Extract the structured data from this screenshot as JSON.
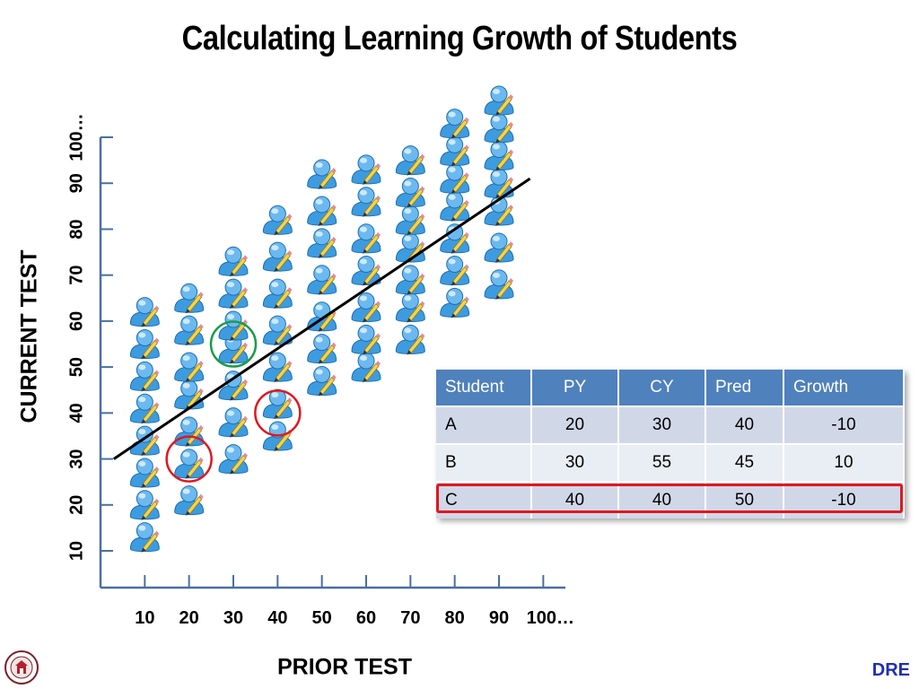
{
  "title": "Calculating Learning Growth of Students",
  "logo_text": "THE SCHOOL DISTRICT",
  "brand": "DRE",
  "colors": {
    "axis": "#4a6fa5",
    "trend": "#000000",
    "highlight_green": "#1a9c4a",
    "highlight_red": "#e0181e",
    "table_header": "#4f81bd",
    "student_icon": "#3d9be0"
  },
  "icons": {
    "student": "student-with-pencil-icon"
  },
  "chart_data": {
    "type": "scatter",
    "xlabel": "PRIOR TEST",
    "ylabel": "CURRENT TEST",
    "xlim": [
      0,
      105
    ],
    "ylim": [
      2,
      100
    ],
    "x_ticks": [
      10,
      20,
      30,
      40,
      50,
      60,
      70,
      80,
      90,
      100
    ],
    "x_tick_labels": [
      "10",
      "20",
      "30",
      "40",
      "50",
      "60",
      "70",
      "80",
      "90",
      "100…"
    ],
    "y_ticks": [
      10,
      20,
      30,
      40,
      50,
      60,
      70,
      80,
      90,
      100
    ],
    "y_tick_labels": [
      "10",
      "20",
      "30",
      "40",
      "50",
      "60",
      "70",
      "80",
      "90",
      "100…"
    ],
    "columns": [
      {
        "x": 10,
        "y": [
          13,
          20,
          27,
          34,
          41,
          48,
          55,
          62
        ]
      },
      {
        "x": 20,
        "y": [
          21,
          29,
          36,
          44,
          50,
          58,
          65
        ]
      },
      {
        "x": 30,
        "y": [
          30,
          38,
          46,
          54,
          59,
          66,
          73
        ]
      },
      {
        "x": 40,
        "y": [
          35,
          42,
          50,
          58,
          66,
          74,
          82
        ]
      },
      {
        "x": 50,
        "y": [
          47,
          54,
          61,
          69,
          77,
          84,
          92
        ]
      },
      {
        "x": 60,
        "y": [
          50,
          56,
          63,
          71,
          78,
          86,
          93
        ]
      },
      {
        "x": 70,
        "y": [
          56,
          63,
          69,
          76,
          82,
          88,
          95
        ]
      },
      {
        "x": 80,
        "y": [
          64,
          71,
          78,
          85,
          91,
          97,
          103
        ]
      },
      {
        "x": 90,
        "y": [
          68,
          76,
          84,
          90,
          96,
          102,
          108
        ]
      }
    ],
    "trend_line": {
      "x": [
        3,
        97
      ],
      "y": [
        30,
        91
      ]
    },
    "highlighted_points": [
      {
        "x": 30,
        "y": 55,
        "color": "green"
      },
      {
        "x": 20,
        "y": 30,
        "color": "red"
      },
      {
        "x": 40,
        "y": 40,
        "color": "red"
      }
    ]
  },
  "table": {
    "headers": [
      "Student",
      "PY",
      "CY",
      "Pred",
      "Growth"
    ],
    "rows": [
      [
        "A",
        "20",
        "30",
        "40",
        "-10"
      ],
      [
        "B",
        "30",
        "55",
        "45",
        "10"
      ],
      [
        "C",
        "40",
        "40",
        "50",
        "-10"
      ]
    ],
    "highlighted_row": "C"
  }
}
